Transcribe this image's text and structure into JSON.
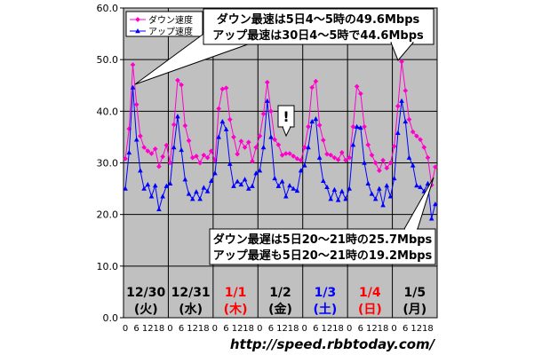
{
  "chart_data": {
    "type": "line",
    "ylim": [
      0,
      60
    ],
    "yticks": [
      "0.0",
      "10.0",
      "20.0",
      "30.0",
      "40.0",
      "50.0",
      "60.0"
    ],
    "x_hour_labels": [
      "0",
      "6",
      "12",
      "18"
    ],
    "x_points_per_day": 12,
    "days": [
      {
        "date": "12/30",
        "weekday": "(火)",
        "color": "#000000"
      },
      {
        "date": "12/31",
        "weekday": "(水)",
        "color": "#000000"
      },
      {
        "date": "1/1",
        "weekday": "(木)",
        "color": "#ff0000"
      },
      {
        "date": "1/2",
        "weekday": "(金)",
        "color": "#000000"
      },
      {
        "date": "1/3",
        "weekday": "(土)",
        "color": "#0000ff"
      },
      {
        "date": "1/4",
        "weekday": "(日)",
        "color": "#ff0000"
      },
      {
        "date": "1/5",
        "weekday": "(月)",
        "color": "#000000"
      }
    ],
    "series": [
      {
        "name": "ダウン速度",
        "color": "#ff00cc",
        "values": [
          30.8,
          36.6,
          49.0,
          41.3,
          35.2,
          33.0,
          32.3,
          31.8,
          32.7,
          29.3,
          31.2,
          33.4,
          30.0,
          37.4,
          46.0,
          45.1,
          37.2,
          34.3,
          31.0,
          31.3,
          30.0,
          31.5,
          31.0,
          32.3,
          30.5,
          40.5,
          44.3,
          44.5,
          38.4,
          35.0,
          31.7,
          34.2,
          33.0,
          34.0,
          30.3,
          33.0,
          35.2,
          39.5,
          45.6,
          40.0,
          34.5,
          33.5,
          31.5,
          31.8,
          31.8,
          31.3,
          30.8,
          30.5,
          33.0,
          37.0,
          44.6,
          45.8,
          37.3,
          34.4,
          31.7,
          31.5,
          31.0,
          30.6,
          32.0,
          30.5,
          31.0,
          37.0,
          44.8,
          43.4,
          37.0,
          33.5,
          31.5,
          30.0,
          28.5,
          30.5,
          29.0,
          30.0,
          33.2,
          41.0,
          49.6,
          44.0,
          38.4,
          36.0,
          35.2,
          34.5,
          33.0,
          31.0,
          25.7,
          29.2
        ]
      },
      {
        "name": "アップ速度",
        "color": "#0000ff",
        "values": [
          25.0,
          32.0,
          44.6,
          34.5,
          28.5,
          25.0,
          25.8,
          23.5,
          25.6,
          21.0,
          23.5,
          25.5,
          26.0,
          33.0,
          39.0,
          32.5,
          26.8,
          24.0,
          23.0,
          24.4,
          23.0,
          25.2,
          24.5,
          26.5,
          28.0,
          35.0,
          38.0,
          36.5,
          29.8,
          25.5,
          26.4,
          25.8,
          26.8,
          25.0,
          25.5,
          28.0,
          28.5,
          33.0,
          42.0,
          35.0,
          27.0,
          25.5,
          26.4,
          23.5,
          25.6,
          25.0,
          24.6,
          28.5,
          29.5,
          33.0,
          38.0,
          38.5,
          31.0,
          26.5,
          25.3,
          23.0,
          24.8,
          22.8,
          24.5,
          23.0,
          25.0,
          33.5,
          37.0,
          36.8,
          30.0,
          26.0,
          24.0,
          23.0,
          25.0,
          21.8,
          25.6,
          23.5,
          27.0,
          35.8,
          42.0,
          38.0,
          31.0,
          29.5,
          25.6,
          25.3,
          24.5,
          26.0,
          19.2,
          22.0
        ]
      }
    ],
    "legend": "top-left",
    "grid": true,
    "annotations": [
      {
        "id": "max",
        "lines": [
          "ダウン最速は5日4～5時の49.6Mbps",
          "アップ最速は30日4～5時で44.6Mbps"
        ]
      },
      {
        "id": "min",
        "lines": [
          "ダウン最遅は5日20～21時の25.7Mbps",
          "アップ最遅も5日20～21時の19.2Mbps"
        ]
      },
      {
        "id": "note",
        "lines": [
          "!"
        ]
      }
    ],
    "source": "http://speed.rbbtoday.com/"
  }
}
